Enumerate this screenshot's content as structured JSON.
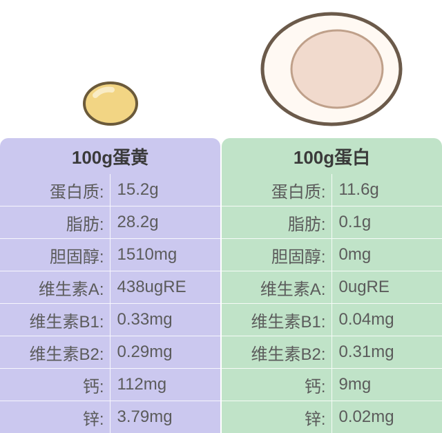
{
  "colors": {
    "left_bg": "#cbc8ef",
    "right_bg": "#c0e3c8",
    "header_text": "#3a3a3a",
    "body_text": "#5b5b5b",
    "yolk_fill": "#f2d584",
    "yolk_stroke": "#6b5a3a",
    "yolk_highlight": "#f9ecc5",
    "white_fill": "#fff9f3",
    "white_stroke": "#6b5a4a",
    "white_inner_fill": "#f1dacd",
    "white_inner_stroke": "#bfa08a"
  },
  "nutrients": [
    {
      "key": "protein",
      "label": "蛋白质"
    },
    {
      "key": "fat",
      "label": "脂肪"
    },
    {
      "key": "chol",
      "label": "胆固醇"
    },
    {
      "key": "vita",
      "label": "维生素A"
    },
    {
      "key": "vitb1",
      "label": "维生素B1"
    },
    {
      "key": "vitb2",
      "label": "维生素B2"
    },
    {
      "key": "ca",
      "label": "钙"
    },
    {
      "key": "zn",
      "label": "锌"
    }
  ],
  "yolk": {
    "title": "100g蛋黄",
    "values": {
      "protein": "15.2g",
      "fat": "28.2g",
      "chol": "1510mg",
      "vita": "438ugRE",
      "vitb1": "0.33mg",
      "vitb2": "0.29mg",
      "ca": "112mg",
      "zn": "3.79mg"
    }
  },
  "white": {
    "title": "100g蛋白",
    "values": {
      "protein": "11.6g",
      "fat": "0.1g",
      "chol": "0mg",
      "vita": "0ugRE",
      "vitb1": "0.04mg",
      "vitb2": "0.31mg",
      "ca": "9mg",
      "zn": "0.02mg"
    }
  }
}
